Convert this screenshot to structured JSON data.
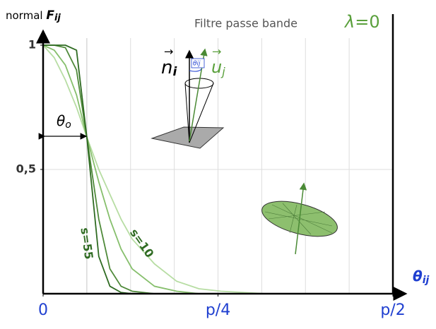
{
  "chart_data": {
    "type": "line",
    "title": "Filtre passe bande",
    "parameter": {
      "symbol": "λ",
      "text": "=0"
    },
    "y_label": {
      "prefix": "normal",
      "symbol": "F",
      "sub": "ij"
    },
    "x_label": {
      "symbol": "θ",
      "sub": "ij"
    },
    "theta_o": {
      "symbol": "θ",
      "sub": "o",
      "value": 0.19635
    },
    "inset": {
      "n": "n",
      "n_sub": "i",
      "u": "u",
      "u_sub": "j",
      "angle": "θij"
    },
    "x": [
      0,
      0.05,
      0.1,
      0.15,
      0.19635,
      0.25,
      0.3,
      0.35,
      0.4,
      0.5,
      0.6,
      0.7,
      0.8,
      1.0,
      1.2,
      1.5708
    ],
    "series": [
      {
        "name": "s=55",
        "color": "#2f6b22",
        "values": [
          1,
          1,
          1,
          0.98,
          0.63,
          0.15,
          0.03,
          0.005,
          0,
          0,
          0,
          0,
          0,
          0,
          0,
          0
        ]
      },
      {
        "color": "#4f8a3a",
        "values": [
          1,
          1,
          0.99,
          0.9,
          0.63,
          0.3,
          0.1,
          0.03,
          0.01,
          0,
          0,
          0,
          0,
          0,
          0,
          0
        ]
      },
      {
        "color": "#86bf6c",
        "values": [
          1,
          0.98,
          0.92,
          0.8,
          0.63,
          0.45,
          0.3,
          0.18,
          0.1,
          0.03,
          0.01,
          0,
          0,
          0,
          0,
          0
        ]
      },
      {
        "name": "s=10",
        "color": "#b7dda3",
        "values": [
          1,
          0.95,
          0.86,
          0.75,
          0.63,
          0.5,
          0.4,
          0.3,
          0.22,
          0.12,
          0.05,
          0.02,
          0.01,
          0,
          0,
          0
        ]
      }
    ],
    "xlim": [
      0,
      1.5708
    ],
    "ylim": [
      0,
      1
    ],
    "xticks": [
      0,
      {
        "value": 0.7854,
        "label": "p/4"
      },
      {
        "value": 1.5708,
        "label": "p/2"
      }
    ],
    "yticks": [
      1,
      {
        "value": 0.5,
        "label": "0,5"
      }
    ],
    "x_gridlines": [
      0.19635,
      0.3927,
      0.58905,
      0.7854,
      0.98175,
      1.1781,
      1.37445
    ],
    "y_gridlines": [
      0.5
    ]
  }
}
